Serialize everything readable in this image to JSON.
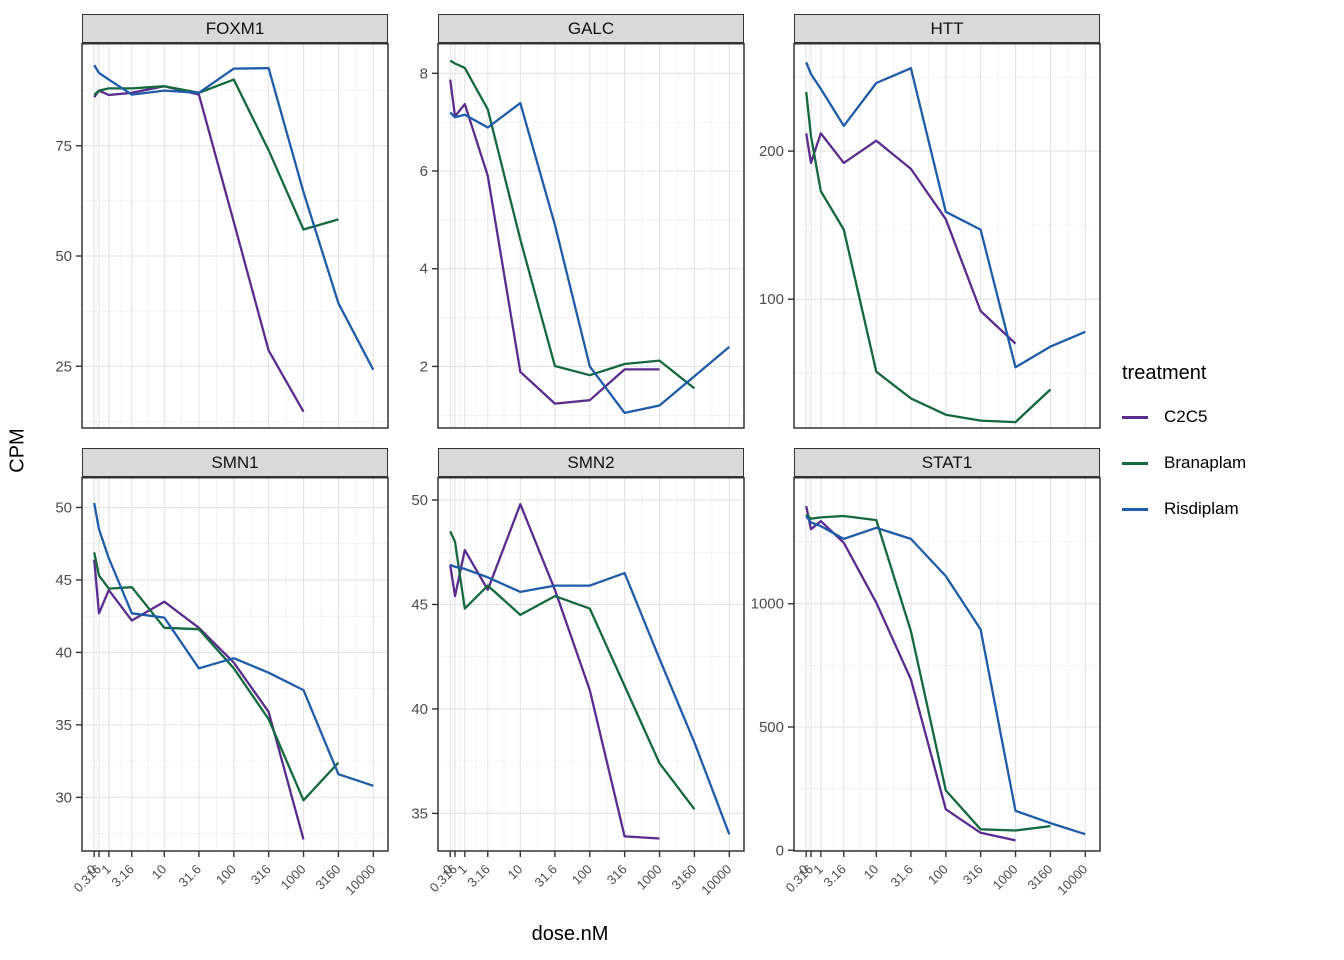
{
  "figure": {
    "ylabel": "CPM",
    "xlabel": "dose.nM"
  },
  "chart_data": {
    "type": "line",
    "xlabel": "dose.nM",
    "ylabel": "CPM",
    "x": {
      "scale": "pseudo-log",
      "doses": [
        0,
        0.316,
        1,
        3.16,
        10,
        31.6,
        100,
        316,
        1000,
        3160,
        10000
      ],
      "labels": [
        "0",
        "0.316",
        "1",
        "3.16",
        "10",
        "31.6",
        "100",
        "316",
        "1000",
        "3160",
        "10000"
      ]
    },
    "legend": {
      "title": "treatment",
      "position": "right",
      "entries": [
        {
          "label": "C2C5",
          "color": "#5B2C8F"
        },
        {
          "label": "Branaplam",
          "color": "#15693E"
        },
        {
          "label": "Risdiplam",
          "color": "#1F5CA9"
        }
      ]
    },
    "facets": [
      {
        "title": "FOXM1",
        "ylim": [
          11,
          98.3
        ],
        "yticks": [
          75,
          50,
          25
        ],
        "series": [
          {
            "name": "C2C5",
            "values": [
              86,
              87.5,
              86.5,
              87,
              88.5,
              86.6,
              57.7,
              28.6,
              14.7
            ]
          },
          {
            "name": "Branaplam",
            "values": [
              86.5,
              87.5,
              88,
              88,
              88.5,
              87,
              90,
              74,
              56,
              58.3
            ]
          },
          {
            "name": "Risdiplam",
            "values": [
              93.3,
              91.5,
              90,
              86.6,
              87.5,
              87,
              92.5,
              92.6,
              64.5,
              39.3,
              24.2
            ]
          }
        ]
      },
      {
        "title": "GALC",
        "ylim": [
          0.74,
          8.62
        ],
        "yticks": [
          8,
          6,
          4,
          2
        ],
        "series": [
          {
            "name": "C2C5",
            "values": [
              7.87,
              7.12,
              7.37,
              5.9,
              1.89,
              1.24,
              1.31,
              1.94,
              1.94
            ]
          },
          {
            "name": "Branaplam",
            "values": [
              8.26,
              8.2,
              8.11,
              7.26,
              4.6,
              2.01,
              1.82,
              2.05,
              2.12,
              1.55
            ]
          },
          {
            "name": "Risdiplam",
            "values": [
              7.2,
              7.1,
              7.15,
              6.89,
              7.39,
              4.9,
              2.0,
              1.05,
              1.2,
              1.8,
              2.4
            ]
          }
        ]
      },
      {
        "title": "HTT",
        "ylim": [
          13,
          273
        ],
        "yticks": [
          200,
          100
        ],
        "series": [
          {
            "name": "C2C5",
            "values": [
              212,
              192,
              212,
              192,
              207,
              188,
              154,
              92,
              70
            ]
          },
          {
            "name": "Branaplam",
            "values": [
              240,
              210,
              173,
              147,
              51,
              33,
              22,
              18,
              17,
              39
            ]
          },
          {
            "name": "Risdiplam",
            "values": [
              260,
              252,
              242,
              217,
              246,
              256,
              159,
              147,
              54,
              68,
              78
            ]
          }
        ]
      },
      {
        "title": "SMN1",
        "ylim": [
          26.3,
          52.1
        ],
        "yticks": [
          50,
          45,
          40,
          35,
          30
        ],
        "series": [
          {
            "name": "C2C5",
            "values": [
              46.4,
              42.7,
              44.3,
              42.2,
              43.5,
              41.7,
              39.3,
              35.9,
              27.1
            ]
          },
          {
            "name": "Branaplam",
            "values": [
              46.9,
              45.3,
              44.4,
              44.5,
              41.7,
              41.6,
              38.9,
              35.4,
              29.8,
              32.4
            ]
          },
          {
            "name": "Risdiplam",
            "values": [
              50.3,
              48.5,
              46.5,
              42.7,
              42.4,
              38.9,
              39.6,
              38.6,
              37.4,
              31.6,
              30.8
            ]
          }
        ]
      },
      {
        "title": "SMN2",
        "ylim": [
          33.2,
          51.1
        ],
        "yticks": [
          50,
          45,
          40,
          35
        ],
        "series": [
          {
            "name": "C2C5",
            "values": [
              46.9,
              45.4,
              47.6,
              45.7,
              49.8,
              45.7,
              40.9,
              33.9,
              33.8
            ]
          },
          {
            "name": "Branaplam",
            "values": [
              48.5,
              48.0,
              44.8,
              45.9,
              44.5,
              45.4,
              44.8,
              41.1,
              37.4,
              35.2
            ]
          },
          {
            "name": "Risdiplam",
            "values": [
              46.9,
              46.8,
              46.7,
              46.3,
              45.6,
              45.9,
              45.9,
              46.5,
              42.4,
              38.4,
              34.0
            ]
          }
        ]
      },
      {
        "title": "STAT1",
        "ylim": [
          -3,
          1514
        ],
        "yticks": [
          1000,
          500,
          0
        ],
        "series": [
          {
            "name": "C2C5",
            "values": [
              1396,
              1302,
              1335,
              1247,
              1004,
              693,
              166,
              71,
              40
            ]
          },
          {
            "name": "Branaplam",
            "values": [
              1362,
              1345,
              1350,
              1356,
              1339,
              889,
              243,
              85,
              80,
              98
            ]
          },
          {
            "name": "Risdiplam",
            "values": [
              1355,
              1330,
              1315,
              1263,
              1308,
              1263,
              1112,
              896,
              160,
              110,
              65
            ]
          }
        ]
      }
    ],
    "style": {
      "strip_bg": "#d9d9d9",
      "panel_border": "#333333",
      "grid_major": "#e4e4e4",
      "grid_minor": "#f1f1f1",
      "tick_text": "#4d4d4d"
    }
  }
}
